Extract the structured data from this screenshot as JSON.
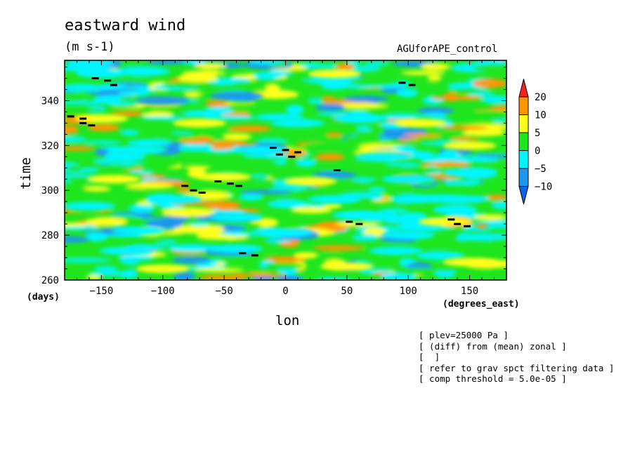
{
  "chart_data": {
    "type": "heatmap",
    "title": "eastward wind",
    "units_label": "(m s-1)",
    "experiment": "AGUforAPE_control",
    "xlabel": "lon",
    "ylabel": "time",
    "x_units": "(degrees_east)",
    "y_units": "(days)",
    "xlim": [
      -180,
      180
    ],
    "ylim": [
      260,
      358
    ],
    "x_ticks": [
      -150,
      -100,
      -50,
      0,
      50,
      100,
      150
    ],
    "x_tick_labels": [
      "−150",
      "−100",
      "−50",
      "0",
      "50",
      "100",
      "150"
    ],
    "y_ticks": [
      260,
      280,
      300,
      320,
      340
    ],
    "y_tick_labels": [
      "260",
      "280",
      "300",
      "320",
      "340"
    ],
    "colorbar": {
      "levels": [
        -10,
        -5,
        0,
        5,
        10,
        20
      ],
      "level_labels": [
        "−10",
        "−5",
        "0",
        "5",
        "10",
        "20"
      ],
      "colors": [
        "#0a64e6",
        "#1e96f0",
        "#00f5ff",
        "#1ee61e",
        "#ffff1e",
        "#ff9600",
        "#ff1e1e"
      ]
    },
    "base_color": "#1ee61e",
    "features": [
      {
        "lon": -100,
        "time": 340,
        "value": -7
      },
      {
        "lon": -40,
        "time": 342,
        "value": -8
      },
      {
        "lon": 35,
        "time": 341,
        "value": 14
      },
      {
        "lon": 40,
        "time": 352,
        "value": 6
      },
      {
        "lon": -150,
        "time": 332,
        "value": 6
      },
      {
        "lon": -70,
        "time": 330,
        "value": 6
      },
      {
        "lon": 10,
        "time": 330,
        "value": -3
      },
      {
        "lon": 60,
        "time": 332,
        "value": -4
      },
      {
        "lon": 110,
        "time": 330,
        "value": 8
      },
      {
        "lon": 150,
        "time": 320,
        "value": 8
      },
      {
        "lon": -120,
        "time": 318,
        "value": -5
      },
      {
        "lon": -20,
        "time": 318,
        "value": -4
      },
      {
        "lon": 80,
        "time": 315,
        "value": -4
      },
      {
        "lon": 150,
        "time": 308,
        "value": -4
      },
      {
        "lon": -140,
        "time": 305,
        "value": 6
      },
      {
        "lon": -50,
        "time": 306,
        "value": 8
      },
      {
        "lon": 20,
        "time": 304,
        "value": 5
      },
      {
        "lon": 100,
        "time": 305,
        "value": -5
      },
      {
        "lon": -90,
        "time": 296,
        "value": -4
      },
      {
        "lon": 40,
        "time": 296,
        "value": -4
      },
      {
        "lon": 140,
        "time": 296,
        "value": -4
      },
      {
        "lon": -160,
        "time": 293,
        "value": -4
      },
      {
        "lon": -40,
        "time": 288,
        "value": -5
      },
      {
        "lon": 60,
        "time": 289,
        "value": -3
      },
      {
        "lon": 130,
        "time": 286,
        "value": 5
      },
      {
        "lon": -120,
        "time": 282,
        "value": -4
      },
      {
        "lon": 0,
        "time": 281,
        "value": -5
      },
      {
        "lon": 100,
        "time": 280,
        "value": -4
      },
      {
        "lon": 160,
        "time": 284,
        "value": 14
      },
      {
        "lon": -130,
        "time": 273,
        "value": -4
      },
      {
        "lon": -40,
        "time": 274,
        "value": -5
      },
      {
        "lon": 90,
        "time": 273,
        "value": -5
      },
      {
        "lon": -100,
        "time": 265,
        "value": 6
      },
      {
        "lon": 50,
        "time": 266,
        "value": 9
      },
      {
        "lon": 150,
        "time": 268,
        "value": 5
      }
    ],
    "markers": [
      {
        "lon": -155,
        "time": 350
      },
      {
        "lon": -145,
        "time": 349
      },
      {
        "lon": -140,
        "time": 347
      },
      {
        "lon": -175,
        "time": 333
      },
      {
        "lon": -165,
        "time": 332
      },
      {
        "lon": -165,
        "time": 330
      },
      {
        "lon": -158,
        "time": 329
      },
      {
        "lon": 95,
        "time": 348
      },
      {
        "lon": 103,
        "time": 347
      },
      {
        "lon": -10,
        "time": 319
      },
      {
        "lon": 0,
        "time": 318
      },
      {
        "lon": 10,
        "time": 317
      },
      {
        "lon": -5,
        "time": 316
      },
      {
        "lon": 5,
        "time": 315
      },
      {
        "lon": 42,
        "time": 309
      },
      {
        "lon": -55,
        "time": 304
      },
      {
        "lon": -45,
        "time": 303
      },
      {
        "lon": -38,
        "time": 302
      },
      {
        "lon": -82,
        "time": 302
      },
      {
        "lon": -75,
        "time": 300
      },
      {
        "lon": -68,
        "time": 299
      },
      {
        "lon": 52,
        "time": 286
      },
      {
        "lon": 60,
        "time": 285
      },
      {
        "lon": 135,
        "time": 287
      },
      {
        "lon": 140,
        "time": 285
      },
      {
        "lon": 148,
        "time": 284
      },
      {
        "lon": -35,
        "time": 272
      },
      {
        "lon": -25,
        "time": 271
      }
    ]
  },
  "notes": [
    "[ plev=25000 Pa ]",
    "[ (diff) from (mean) zonal ]",
    "[  ]",
    "[ refer to grav spct filtering data ]",
    "[ comp threshold = 5.0e-05 ]"
  ]
}
